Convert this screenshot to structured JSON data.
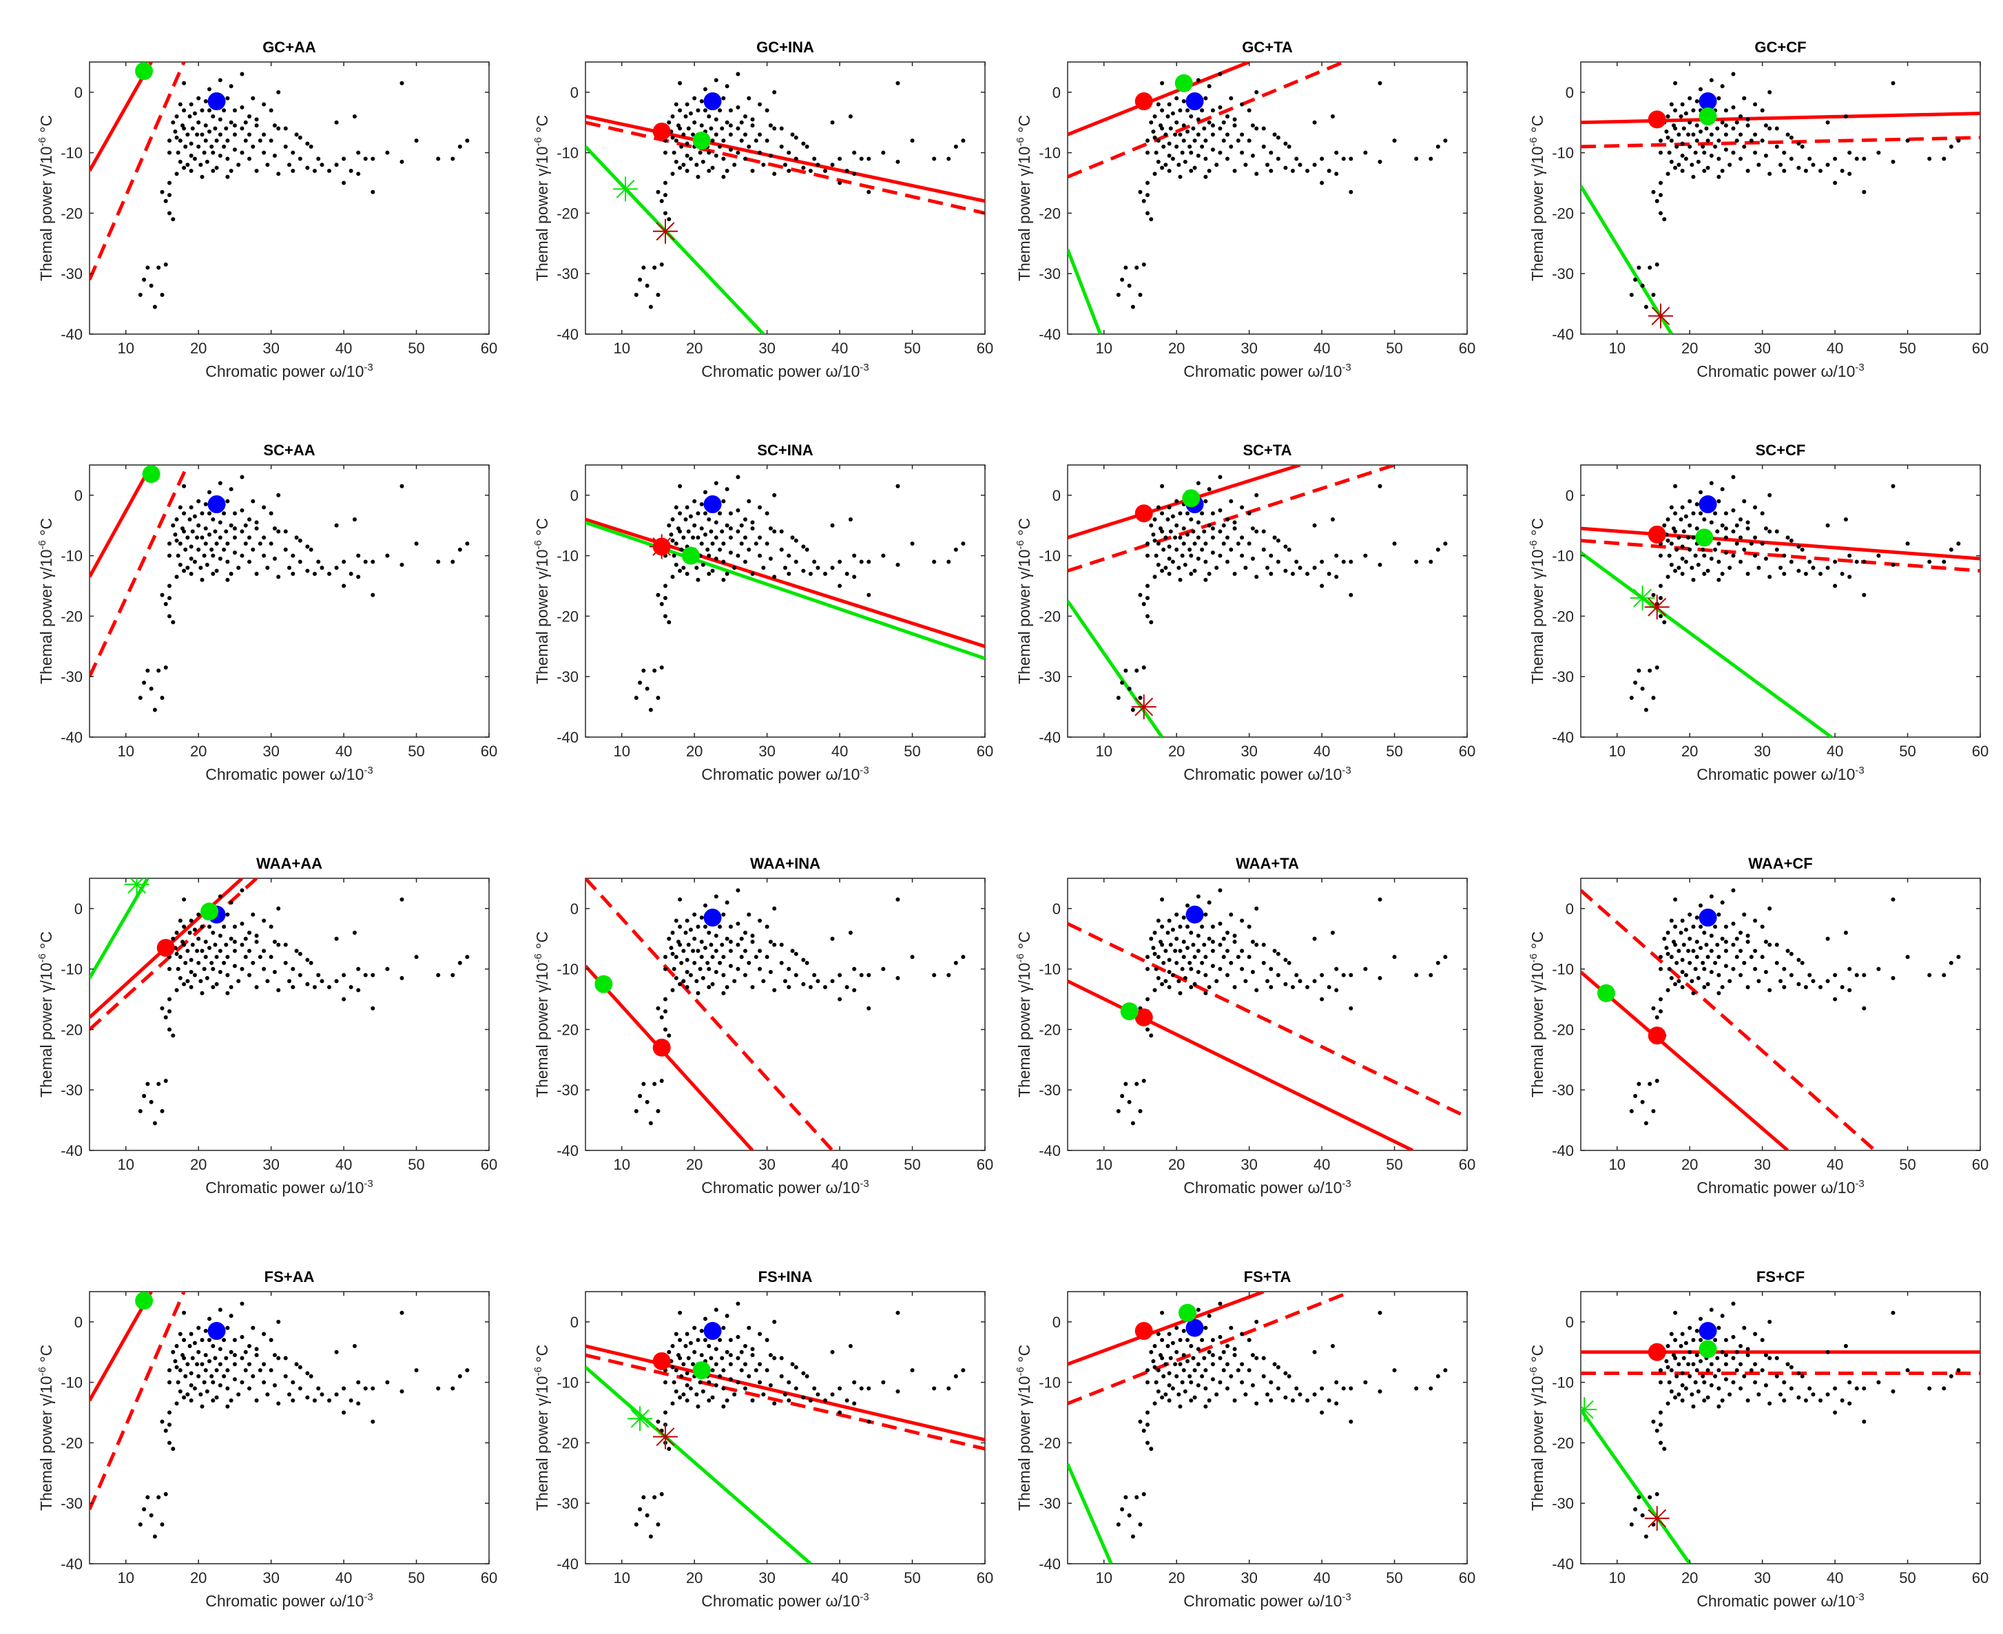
{
  "colors": {
    "red": "#ff0000",
    "green": "#00e600",
    "blue": "#0000ff",
    "black": "#000000",
    "dark_red": "#c00000"
  },
  "axes_common": {
    "xlim": [
      5,
      60
    ],
    "ylim": [
      -40,
      5
    ],
    "xticks": [
      10,
      20,
      30,
      40,
      50,
      60
    ],
    "yticks": [
      0,
      -10,
      -20,
      -30,
      -40
    ],
    "xlabel": "Chromatic power  ω/10",
    "xlabel_exp": "-3",
    "ylabel": "Themal power  γ/10",
    "ylabel_exp": "-6",
    "ylabel_unit": " °C",
    "ylabel_alt": "Themal power  γ/10",
    "ylabel_alt_exp": "-6",
    "ylabel_alt_unit": " °C"
  },
  "chart_data": {
    "type": "scatter",
    "scatter_points": [
      [
        12,
        -33.5
      ],
      [
        12.5,
        -31
      ],
      [
        13,
        -29
      ],
      [
        13.5,
        -32
      ],
      [
        14,
        -35.5
      ],
      [
        14.5,
        -29
      ],
      [
        15,
        -33.5
      ],
      [
        15.5,
        -28.5
      ],
      [
        15,
        -16.5
      ],
      [
        15.5,
        -18
      ],
      [
        16,
        -17
      ],
      [
        16,
        -20
      ],
      [
        16.5,
        -21
      ],
      [
        16,
        -15
      ],
      [
        16,
        -10
      ],
      [
        16,
        -8
      ],
      [
        16.5,
        -5
      ],
      [
        16.8,
        -6.5
      ],
      [
        17,
        -4
      ],
      [
        17,
        -7.5
      ],
      [
        17.2,
        -10
      ],
      [
        17.5,
        -2
      ],
      [
        17.5,
        -8
      ],
      [
        17.5,
        -11.5
      ],
      [
        17.8,
        -5.5
      ],
      [
        18,
        1.5
      ],
      [
        18,
        -3
      ],
      [
        18,
        -6
      ],
      [
        18.2,
        -9
      ],
      [
        18.5,
        -7
      ],
      [
        18.5,
        -12
      ],
      [
        18.8,
        -4
      ],
      [
        19,
        -2
      ],
      [
        19,
        -8.5
      ],
      [
        19,
        -10.5
      ],
      [
        19.2,
        -6
      ],
      [
        19.5,
        -3.5
      ],
      [
        19.5,
        -11
      ],
      [
        19.8,
        -7
      ],
      [
        20,
        -1
      ],
      [
        20,
        -5
      ],
      [
        20,
        -9
      ],
      [
        20.3,
        -12
      ],
      [
        20.5,
        -3
      ],
      [
        20.5,
        -7
      ],
      [
        20.8,
        -10
      ],
      [
        21,
        -1.5
      ],
      [
        21,
        -5.5
      ],
      [
        21,
        -8
      ],
      [
        21.2,
        -11.5
      ],
      [
        21.5,
        -3
      ],
      [
        21.5,
        -6.5
      ],
      [
        21.8,
        -9
      ],
      [
        22,
        -4
      ],
      [
        22,
        -10
      ],
      [
        22.3,
        -6
      ],
      [
        22.5,
        -2
      ],
      [
        22.5,
        -8
      ],
      [
        22.5,
        -12.5
      ],
      [
        23,
        -4.5
      ],
      [
        23,
        -7
      ],
      [
        23,
        -10.5
      ],
      [
        23.5,
        -3
      ],
      [
        23.5,
        -9
      ],
      [
        23.8,
        -6
      ],
      [
        24,
        -1
      ],
      [
        24,
        -8
      ],
      [
        24,
        -11
      ],
      [
        24.5,
        -5
      ],
      [
        24.5,
        -13
      ],
      [
        25,
        -7
      ],
      [
        25,
        -3
      ],
      [
        25,
        -9.5
      ],
      [
        25.5,
        -12
      ],
      [
        26,
        -6
      ],
      [
        26,
        -10
      ],
      [
        26,
        -2.5
      ],
      [
        26.5,
        -8
      ],
      [
        27,
        -4
      ],
      [
        27,
        -11
      ],
      [
        27,
        -7
      ],
      [
        27.5,
        -9
      ],
      [
        28,
        -5.5
      ],
      [
        28,
        -13
      ],
      [
        28.5,
        -8
      ],
      [
        29,
        -7
      ],
      [
        29,
        -10
      ],
      [
        29.5,
        -12
      ],
      [
        30,
        -8
      ],
      [
        30,
        -3
      ],
      [
        30.5,
        -10.5
      ],
      [
        31,
        -6
      ],
      [
        31,
        -13.5
      ],
      [
        32,
        -9
      ],
      [
        32.5,
        -12
      ],
      [
        33,
        -10
      ],
      [
        33,
        -13
      ],
      [
        34,
        -11
      ],
      [
        34,
        -7.5
      ],
      [
        35,
        -12.5
      ],
      [
        35.5,
        -9
      ],
      [
        36,
        -13
      ],
      [
        36.5,
        -11
      ],
      [
        37,
        -12
      ],
      [
        38,
        -13
      ],
      [
        39,
        -12
      ],
      [
        39,
        -5
      ],
      [
        40,
        -11
      ],
      [
        40,
        -15
      ],
      [
        41,
        -13
      ],
      [
        41.5,
        -4
      ],
      [
        42,
        -13.5
      ],
      [
        42,
        -10
      ],
      [
        43,
        -11
      ],
      [
        44,
        -16.5
      ],
      [
        44,
        -11
      ],
      [
        46,
        -10
      ],
      [
        48,
        -11.5
      ],
      [
        48,
        1.5
      ],
      [
        50,
        -8
      ],
      [
        53,
        -11
      ],
      [
        55,
        -11
      ],
      [
        56,
        -9
      ],
      [
        57,
        -8
      ],
      [
        25,
        -5.5
      ],
      [
        26.5,
        -5
      ],
      [
        22,
        -13
      ],
      [
        18,
        -12.5
      ],
      [
        19,
        -13
      ],
      [
        20.5,
        -14
      ],
      [
        24,
        -14
      ],
      [
        28,
        -4.5
      ],
      [
        29,
        -2
      ],
      [
        30.5,
        -5.5
      ],
      [
        32,
        -6
      ],
      [
        33.5,
        -7
      ],
      [
        35,
        -8.5
      ],
      [
        21.5,
        0.5
      ],
      [
        23,
        2
      ],
      [
        24.5,
        1
      ],
      [
        26,
        3
      ],
      [
        27.5,
        -1
      ],
      [
        31,
        0
      ],
      [
        17,
        -13.5
      ]
    ],
    "blue_point": [
      22.5,
      -1.5
    ],
    "panels": [
      {
        "title": "GC+AA",
        "solid": [
          [
            5,
            -13
          ],
          [
            13.5,
            5
          ]
        ],
        "dashed": [
          [
            5,
            -31
          ],
          [
            18,
            5
          ]
        ],
        "green_line": null,
        "red_dot": null,
        "green_dot": [
          12.5,
          3.5
        ],
        "green_star": null,
        "red_star": null,
        "blue": [
          22.5,
          -1.5
        ]
      },
      {
        "title": "GC+INA",
        "solid": [
          [
            5,
            -4
          ],
          [
            60,
            -18
          ]
        ],
        "dashed": [
          [
            5,
            -5
          ],
          [
            60,
            -20
          ]
        ],
        "green_line": [
          [
            5,
            -9
          ],
          [
            29.5,
            -40
          ]
        ],
        "red_dot": [
          15.5,
          -6.5
        ],
        "green_dot": [
          21,
          -8
        ],
        "green_star": [
          10.5,
          -16
        ],
        "red_star": [
          16,
          -23
        ],
        "blue": [
          22.5,
          -1.5
        ]
      },
      {
        "title": "GC+TA",
        "solid": [
          [
            5,
            -7
          ],
          [
            30,
            5
          ]
        ],
        "dashed": [
          [
            5,
            -14
          ],
          [
            43,
            5
          ]
        ],
        "green_line": [
          [
            5,
            -26
          ],
          [
            9.5,
            -40
          ]
        ],
        "red_dot": [
          15.5,
          -1.5
        ],
        "green_dot": [
          21,
          1.5
        ],
        "green_star": null,
        "red_star": null,
        "blue": [
          22.5,
          -1.5
        ]
      },
      {
        "title": "GC+CF",
        "solid": [
          [
            5,
            -5
          ],
          [
            60,
            -3.5
          ]
        ],
        "dashed": [
          [
            5,
            -9
          ],
          [
            60,
            -7.5
          ]
        ],
        "green_line": [
          [
            5,
            -15.5
          ],
          [
            17.5,
            -40
          ]
        ],
        "red_dot": [
          15.5,
          -4.5
        ],
        "green_dot": [
          22.5,
          -4
        ],
        "green_star": null,
        "red_star": [
          16,
          -37
        ],
        "blue": [
          22.5,
          -1.5
        ]
      },
      {
        "title": "SC+AA",
        "solid": [
          [
            5,
            -13.5
          ],
          [
            13.5,
            5
          ]
        ],
        "dashed": [
          [
            5,
            -30
          ],
          [
            18.5,
            5
          ]
        ],
        "green_line": null,
        "red_dot": null,
        "green_dot": [
          13.5,
          3.5
        ],
        "green_star": null,
        "red_star": null,
        "blue": [
          22.5,
          -1.5
        ]
      },
      {
        "title": "SC+INA",
        "solid": [
          [
            5,
            -4
          ],
          [
            60,
            -25
          ]
        ],
        "dashed": null,
        "green_line": [
          [
            5,
            -4.5
          ],
          [
            60,
            -27
          ]
        ],
        "red_dot": [
          15.5,
          -8.5
        ],
        "green_dot": [
          19.5,
          -10
        ],
        "green_star": null,
        "red_star": [
          15.5,
          -8.5
        ],
        "blue": [
          22.5,
          -1.5
        ]
      },
      {
        "title": "SC+TA",
        "solid": [
          [
            5,
            -7
          ],
          [
            37,
            5
          ]
        ],
        "dashed": [
          [
            5,
            -12.5
          ],
          [
            50,
            5
          ]
        ],
        "green_line": [
          [
            5,
            -17.5
          ],
          [
            18,
            -40
          ]
        ],
        "red_dot": [
          15.5,
          -3
        ],
        "green_dot": [
          22,
          -0.5
        ],
        "green_star": null,
        "red_star": [
          15.5,
          -35
        ],
        "blue": [
          22.5,
          -1.5
        ]
      },
      {
        "title": "SC+CF",
        "solid": [
          [
            5,
            -5.5
          ],
          [
            60,
            -10.5
          ]
        ],
        "dashed": [
          [
            5,
            -7.5
          ],
          [
            60,
            -12.5
          ]
        ],
        "green_line": [
          [
            5,
            -9.5
          ],
          [
            39.5,
            -40
          ]
        ],
        "red_dot": [
          15.5,
          -6.5
        ],
        "green_dot": [
          22,
          -7
        ],
        "green_star": [
          13.5,
          -17
        ],
        "red_star": [
          15.5,
          -18.5
        ],
        "blue": [
          22.5,
          -1.5
        ]
      },
      {
        "title": "WAA+AA",
        "solid": [
          [
            5,
            -18
          ],
          [
            26,
            5
          ]
        ],
        "dashed": [
          [
            5,
            -20
          ],
          [
            28,
            5
          ]
        ],
        "green_line": [
          [
            5,
            -11.5
          ],
          [
            13,
            5
          ]
        ],
        "red_dot": [
          15.5,
          -6.5
        ],
        "green_dot": [
          21.5,
          -0.5
        ],
        "green_star": [
          11.5,
          4
        ],
        "red_star": null,
        "blue": [
          22.5,
          -1
        ]
      },
      {
        "title": "WAA+INA",
        "solid": [
          [
            5,
            -9.5
          ],
          [
            28,
            -40
          ]
        ],
        "dashed": [
          [
            5,
            5
          ],
          [
            39,
            -40
          ]
        ],
        "green_line": null,
        "red_dot": [
          15.5,
          -23
        ],
        "green_dot": [
          7.5,
          -12.5
        ],
        "green_star": null,
        "red_star": null,
        "blue": [
          22.5,
          -1.5
        ]
      },
      {
        "title": "WAA+TA",
        "solid": [
          [
            5,
            -12
          ],
          [
            52.5,
            -40
          ]
        ],
        "dashed": [
          [
            5,
            -2.5
          ],
          [
            60,
            -34.5
          ]
        ],
        "green_line": null,
        "red_dot": [
          15.5,
          -18
        ],
        "green_dot": [
          13.5,
          -17
        ],
        "green_star": null,
        "red_star": null,
        "blue": [
          22.5,
          -1
        ]
      },
      {
        "title": "WAA+CF",
        "solid": [
          [
            5,
            -10.5
          ],
          [
            33.5,
            -40
          ]
        ],
        "dashed": [
          [
            5,
            3
          ],
          [
            45.5,
            -40
          ]
        ],
        "green_line": null,
        "red_dot": [
          15.5,
          -21
        ],
        "green_dot": [
          8.5,
          -14
        ],
        "green_star": null,
        "red_star": null,
        "blue": [
          22.5,
          -1.5
        ]
      },
      {
        "title": "FS+AA",
        "solid": [
          [
            5,
            -13
          ],
          [
            13.5,
            5
          ]
        ],
        "dashed": [
          [
            5,
            -31
          ],
          [
            18,
            5
          ]
        ],
        "green_line": null,
        "red_dot": null,
        "green_dot": [
          12.5,
          3.5
        ],
        "green_star": null,
        "red_star": null,
        "blue": [
          22.5,
          -1.5
        ]
      },
      {
        "title": "FS+INA",
        "solid": [
          [
            5,
            -4
          ],
          [
            60,
            -19.5
          ]
        ],
        "dashed": [
          [
            5,
            -5.5
          ],
          [
            60,
            -21
          ]
        ],
        "green_line": [
          [
            5,
            -7.5
          ],
          [
            36,
            -40
          ]
        ],
        "red_dot": [
          15.5,
          -6.5
        ],
        "green_dot": [
          21,
          -8
        ],
        "green_star": [
          12.5,
          -16
        ],
        "red_star": [
          16,
          -19
        ],
        "blue": [
          22.5,
          -1.5
        ]
      },
      {
        "title": "FS+TA",
        "solid": [
          [
            5,
            -7
          ],
          [
            32,
            5
          ]
        ],
        "dashed": [
          [
            5,
            -13.5
          ],
          [
            44,
            5
          ]
        ],
        "green_line": [
          [
            5,
            -23.5
          ],
          [
            11,
            -40
          ]
        ],
        "red_dot": [
          15.5,
          -1.5
        ],
        "green_dot": [
          21.5,
          1.5
        ],
        "green_star": null,
        "red_star": null,
        "blue": [
          22.5,
          -1
        ]
      },
      {
        "title": "FS+CF",
        "solid": [
          [
            5,
            -5
          ],
          [
            60,
            -5
          ]
        ],
        "dashed": [
          [
            5,
            -8.5
          ],
          [
            60,
            -8.5
          ]
        ],
        "green_line": [
          [
            5,
            -14.5
          ],
          [
            20,
            -40
          ]
        ],
        "red_dot": [
          15.5,
          -5
        ],
        "green_dot": [
          22.5,
          -4.5
        ],
        "green_star": [
          5.5,
          -14.5
        ],
        "red_star": [
          15.5,
          -32.5
        ],
        "blue": [
          22.5,
          -1.5
        ]
      }
    ]
  }
}
